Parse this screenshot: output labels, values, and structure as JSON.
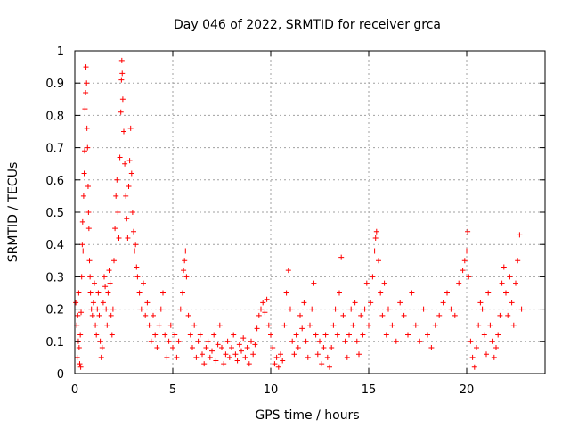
{
  "chart_data": {
    "type": "scatter",
    "title": "Day 046 of 2022, SRMTID for receiver grca",
    "xlabel": "GPS time / hours",
    "ylabel": "SRMTID / TECUs",
    "xlim": [
      0,
      24
    ],
    "ylim": [
      0,
      1
    ],
    "xticks": [
      0,
      5,
      10,
      15,
      20
    ],
    "xtick_labels": [
      "0",
      "5",
      "10",
      "15",
      "20"
    ],
    "yticks": [
      0,
      0.1,
      0.2,
      0.3,
      0.4,
      0.5,
      0.6,
      0.7,
      0.8,
      0.9,
      1
    ],
    "ytick_labels": [
      "0",
      "0.1",
      "0.2",
      "0.3",
      "0.4",
      "0.5",
      "0.6",
      "0.7",
      "0.8",
      "0.9",
      "1"
    ],
    "grid": true,
    "marker": "plus",
    "series": [
      {
        "name": "SRMTID",
        "color": "#ff0000",
        "points": [
          [
            0.05,
            0.22
          ],
          [
            0.1,
            0.15
          ],
          [
            0.12,
            0.05
          ],
          [
            0.15,
            0.18
          ],
          [
            0.18,
            0.1
          ],
          [
            0.2,
            0.25
          ],
          [
            0.22,
            0.08
          ],
          [
            0.25,
            0.03
          ],
          [
            0.28,
            0.12
          ],
          [
            0.3,
            0.02
          ],
          [
            0.32,
            0.19
          ],
          [
            0.35,
            0.3
          ],
          [
            0.38,
            0.4
          ],
          [
            0.4,
            0.47
          ],
          [
            0.42,
            0.38
          ],
          [
            0.45,
            0.55
          ],
          [
            0.48,
            0.62
          ],
          [
            0.5,
            0.69
          ],
          [
            0.52,
            0.82
          ],
          [
            0.55,
            0.87
          ],
          [
            0.57,
            0.95
          ],
          [
            0.6,
            0.9
          ],
          [
            0.62,
            0.76
          ],
          [
            0.65,
            0.7
          ],
          [
            0.68,
            0.58
          ],
          [
            0.7,
            0.5
          ],
          [
            0.72,
            0.45
          ],
          [
            0.75,
            0.35
          ],
          [
            0.78,
            0.3
          ],
          [
            0.8,
            0.25
          ],
          [
            0.85,
            0.2
          ],
          [
            0.9,
            0.18
          ],
          [
            0.95,
            0.22
          ],
          [
            1.0,
            0.28
          ],
          [
            1.05,
            0.15
          ],
          [
            1.1,
            0.12
          ],
          [
            1.15,
            0.2
          ],
          [
            1.2,
            0.25
          ],
          [
            1.25,
            0.18
          ],
          [
            1.3,
            0.1
          ],
          [
            1.35,
            0.05
          ],
          [
            1.4,
            0.08
          ],
          [
            1.45,
            0.22
          ],
          [
            1.5,
            0.3
          ],
          [
            1.55,
            0.27
          ],
          [
            1.6,
            0.2
          ],
          [
            1.65,
            0.15
          ],
          [
            1.7,
            0.25
          ],
          [
            1.75,
            0.32
          ],
          [
            1.8,
            0.28
          ],
          [
            1.85,
            0.18
          ],
          [
            1.9,
            0.12
          ],
          [
            1.95,
            0.2
          ],
          [
            2.0,
            0.35
          ],
          [
            2.05,
            0.45
          ],
          [
            2.1,
            0.55
          ],
          [
            2.15,
            0.6
          ],
          [
            2.2,
            0.5
          ],
          [
            2.25,
            0.42
          ],
          [
            2.3,
            0.67
          ],
          [
            2.35,
            0.81
          ],
          [
            2.38,
            0.91
          ],
          [
            2.4,
            0.97
          ],
          [
            2.42,
            0.93
          ],
          [
            2.45,
            0.85
          ],
          [
            2.5,
            0.75
          ],
          [
            2.55,
            0.65
          ],
          [
            2.6,
            0.55
          ],
          [
            2.65,
            0.48
          ],
          [
            2.7,
            0.42
          ],
          [
            2.75,
            0.58
          ],
          [
            2.8,
            0.66
          ],
          [
            2.85,
            0.76
          ],
          [
            2.9,
            0.62
          ],
          [
            2.95,
            0.5
          ],
          [
            3.0,
            0.44
          ],
          [
            3.05,
            0.38
          ],
          [
            3.1,
            0.4
          ],
          [
            3.15,
            0.33
          ],
          [
            3.2,
            0.3
          ],
          [
            3.3,
            0.25
          ],
          [
            3.4,
            0.2
          ],
          [
            3.5,
            0.28
          ],
          [
            3.6,
            0.18
          ],
          [
            3.7,
            0.22
          ],
          [
            3.8,
            0.15
          ],
          [
            3.9,
            0.1
          ],
          [
            4.0,
            0.18
          ],
          [
            4.1,
            0.12
          ],
          [
            4.2,
            0.08
          ],
          [
            4.3,
            0.15
          ],
          [
            4.4,
            0.2
          ],
          [
            4.5,
            0.25
          ],
          [
            4.6,
            0.12
          ],
          [
            4.7,
            0.05
          ],
          [
            4.8,
            0.1
          ],
          [
            4.9,
            0.15
          ],
          [
            5.0,
            0.08
          ],
          [
            5.1,
            0.12
          ],
          [
            5.2,
            0.05
          ],
          [
            5.3,
            0.1
          ],
          [
            5.4,
            0.2
          ],
          [
            5.5,
            0.25
          ],
          [
            5.55,
            0.32
          ],
          [
            5.6,
            0.35
          ],
          [
            5.65,
            0.38
          ],
          [
            5.7,
            0.3
          ],
          [
            5.8,
            0.18
          ],
          [
            5.9,
            0.12
          ],
          [
            6.0,
            0.08
          ],
          [
            6.1,
            0.15
          ],
          [
            6.2,
            0.05
          ],
          [
            6.3,
            0.1
          ],
          [
            6.4,
            0.12
          ],
          [
            6.5,
            0.06
          ],
          [
            6.6,
            0.03
          ],
          [
            6.7,
            0.08
          ],
          [
            6.8,
            0.1
          ],
          [
            6.9,
            0.05
          ],
          [
            7.0,
            0.07
          ],
          [
            7.1,
            0.12
          ],
          [
            7.2,
            0.04
          ],
          [
            7.3,
            0.09
          ],
          [
            7.4,
            0.15
          ],
          [
            7.5,
            0.08
          ],
          [
            7.6,
            0.03
          ],
          [
            7.7,
            0.06
          ],
          [
            7.8,
            0.1
          ],
          [
            7.9,
            0.05
          ],
          [
            8.0,
            0.08
          ],
          [
            8.1,
            0.12
          ],
          [
            8.2,
            0.06
          ],
          [
            8.3,
            0.04
          ],
          [
            8.4,
            0.09
          ],
          [
            8.5,
            0.07
          ],
          [
            8.6,
            0.11
          ],
          [
            8.7,
            0.05
          ],
          [
            8.8,
            0.08
          ],
          [
            8.9,
            0.03
          ],
          [
            9.0,
            0.1
          ],
          [
            9.1,
            0.06
          ],
          [
            9.2,
            0.09
          ],
          [
            9.3,
            0.14
          ],
          [
            9.4,
            0.18
          ],
          [
            9.5,
            0.2
          ],
          [
            9.6,
            0.22
          ],
          [
            9.7,
            0.19
          ],
          [
            9.8,
            0.23
          ],
          [
            9.9,
            0.15
          ],
          [
            10.0,
            0.12
          ],
          [
            10.1,
            0.08
          ],
          [
            10.2,
            0.03
          ],
          [
            10.3,
            0.05
          ],
          [
            10.4,
            0.02
          ],
          [
            10.5,
            0.06
          ],
          [
            10.6,
            0.04
          ],
          [
            10.7,
            0.15
          ],
          [
            10.8,
            0.25
          ],
          [
            10.9,
            0.32
          ],
          [
            11.0,
            0.2
          ],
          [
            11.1,
            0.1
          ],
          [
            11.2,
            0.06
          ],
          [
            11.3,
            0.12
          ],
          [
            11.4,
            0.08
          ],
          [
            11.5,
            0.18
          ],
          [
            11.6,
            0.14
          ],
          [
            11.7,
            0.22
          ],
          [
            11.8,
            0.1
          ],
          [
            11.9,
            0.05
          ],
          [
            12.0,
            0.15
          ],
          [
            12.1,
            0.2
          ],
          [
            12.2,
            0.28
          ],
          [
            12.3,
            0.12
          ],
          [
            12.4,
            0.06
          ],
          [
            12.5,
            0.1
          ],
          [
            12.6,
            0.03
          ],
          [
            12.7,
            0.08
          ],
          [
            12.8,
            0.12
          ],
          [
            12.9,
            0.05
          ],
          [
            13.0,
            0.02
          ],
          [
            13.1,
            0.08
          ],
          [
            13.2,
            0.15
          ],
          [
            13.3,
            0.2
          ],
          [
            13.4,
            0.12
          ],
          [
            13.5,
            0.25
          ],
          [
            13.6,
            0.36
          ],
          [
            13.7,
            0.18
          ],
          [
            13.8,
            0.1
          ],
          [
            13.9,
            0.05
          ],
          [
            14.0,
            0.12
          ],
          [
            14.1,
            0.2
          ],
          [
            14.2,
            0.15
          ],
          [
            14.3,
            0.22
          ],
          [
            14.4,
            0.1
          ],
          [
            14.5,
            0.06
          ],
          [
            14.6,
            0.18
          ],
          [
            14.7,
            0.12
          ],
          [
            14.8,
            0.2
          ],
          [
            14.9,
            0.28
          ],
          [
            15.0,
            0.15
          ],
          [
            15.1,
            0.22
          ],
          [
            15.2,
            0.3
          ],
          [
            15.3,
            0.38
          ],
          [
            15.35,
            0.42
          ],
          [
            15.4,
            0.44
          ],
          [
            15.5,
            0.35
          ],
          [
            15.6,
            0.25
          ],
          [
            15.7,
            0.18
          ],
          [
            15.8,
            0.28
          ],
          [
            15.9,
            0.12
          ],
          [
            16.0,
            0.2
          ],
          [
            16.2,
            0.15
          ],
          [
            16.4,
            0.1
          ],
          [
            16.6,
            0.22
          ],
          [
            16.8,
            0.18
          ],
          [
            17.0,
            0.12
          ],
          [
            17.2,
            0.25
          ],
          [
            17.4,
            0.15
          ],
          [
            17.6,
            0.1
          ],
          [
            17.8,
            0.2
          ],
          [
            18.0,
            0.12
          ],
          [
            18.2,
            0.08
          ],
          [
            18.4,
            0.15
          ],
          [
            18.6,
            0.18
          ],
          [
            18.8,
            0.22
          ],
          [
            19.0,
            0.25
          ],
          [
            19.2,
            0.2
          ],
          [
            19.4,
            0.18
          ],
          [
            19.6,
            0.28
          ],
          [
            19.8,
            0.32
          ],
          [
            19.9,
            0.35
          ],
          [
            20.0,
            0.38
          ],
          [
            20.05,
            0.44
          ],
          [
            20.1,
            0.3
          ],
          [
            20.2,
            0.1
          ],
          [
            20.3,
            0.05
          ],
          [
            20.4,
            0.02
          ],
          [
            20.5,
            0.08
          ],
          [
            20.6,
            0.15
          ],
          [
            20.7,
            0.22
          ],
          [
            20.8,
            0.2
          ],
          [
            20.9,
            0.12
          ],
          [
            21.0,
            0.06
          ],
          [
            21.1,
            0.25
          ],
          [
            21.2,
            0.15
          ],
          [
            21.3,
            0.1
          ],
          [
            21.4,
            0.05
          ],
          [
            21.5,
            0.08
          ],
          [
            21.6,
            0.12
          ],
          [
            21.7,
            0.18
          ],
          [
            21.8,
            0.28
          ],
          [
            21.9,
            0.33
          ],
          [
            22.0,
            0.25
          ],
          [
            22.1,
            0.18
          ],
          [
            22.2,
            0.3
          ],
          [
            22.3,
            0.22
          ],
          [
            22.4,
            0.15
          ],
          [
            22.5,
            0.28
          ],
          [
            22.6,
            0.35
          ],
          [
            22.7,
            0.43
          ],
          [
            22.8,
            0.2
          ]
        ]
      }
    ]
  }
}
